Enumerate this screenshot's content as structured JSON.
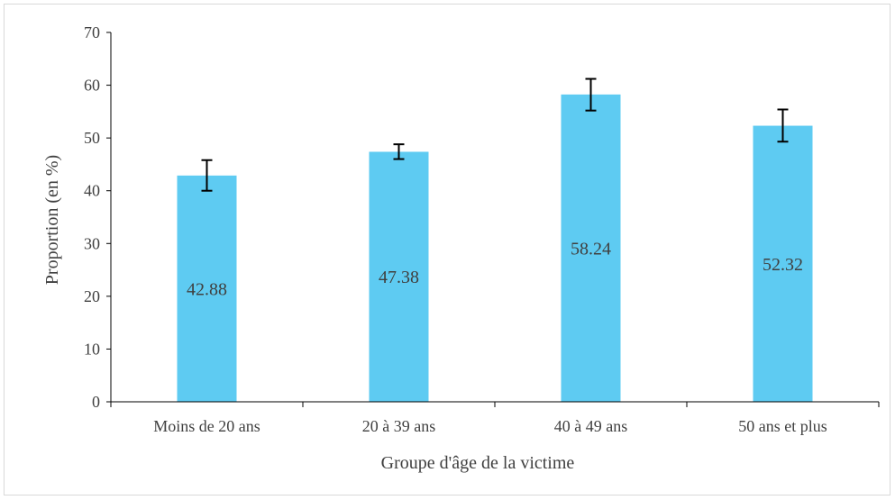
{
  "chart_data": {
    "type": "bar",
    "title": "",
    "xlabel": "Groupe d'âge de la victime",
    "ylabel": "Proportion (en %)",
    "ylim": [
      0,
      70
    ],
    "yticks": [
      0,
      10,
      20,
      30,
      40,
      50,
      60,
      70
    ],
    "categories": [
      "Moins de 20 ans",
      "20 à 39 ans",
      "40 à 49 ans",
      "50 ans et plus"
    ],
    "values": [
      42.88,
      47.38,
      58.24,
      52.32
    ],
    "data_labels": [
      "42.88",
      "47.38",
      "58.24",
      "52.32"
    ],
    "error_bars": [
      {
        "low": 40.0,
        "high": 45.8
      },
      {
        "low": 46.0,
        "high": 48.8
      },
      {
        "low": 55.2,
        "high": 61.2
      },
      {
        "low": 49.3,
        "high": 55.4
      }
    ],
    "bar_color": "#5ecbf2",
    "error_color": "#000000",
    "grid": false,
    "legend": "none"
  }
}
